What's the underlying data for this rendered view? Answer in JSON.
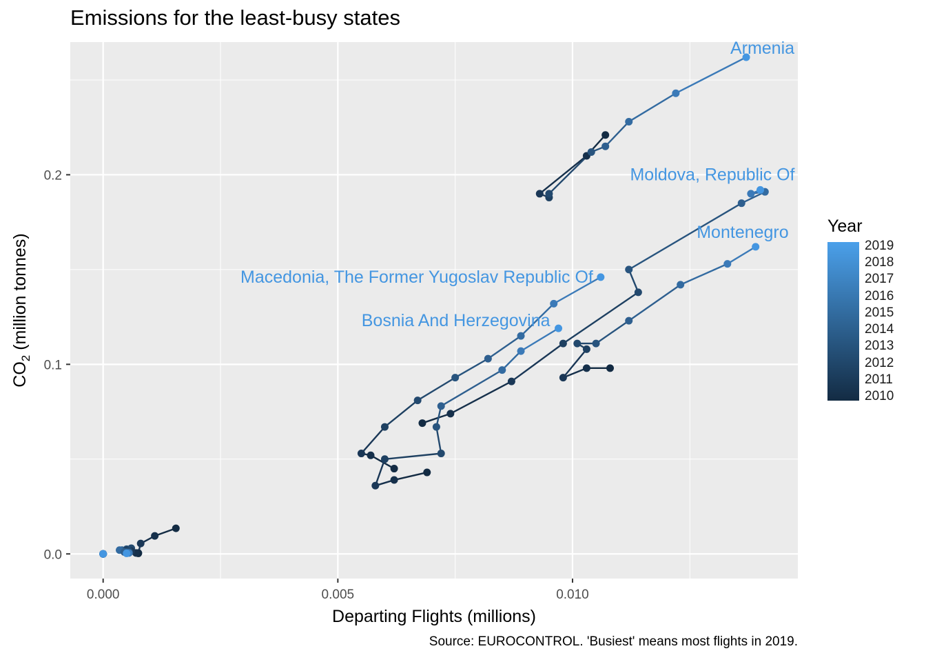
{
  "chart_data": {
    "type": "scatter",
    "title": "Emissions for the least-busy states",
    "xlabel": "Departing Flights (millions)",
    "ylabel": "CO2 (million tonnes)",
    "caption": "Source: EUROCONTROL. 'Busiest' means most flights in 2019.",
    "xlim": [
      -0.0007,
      0.0148
    ],
    "ylim": [
      -0.013,
      0.27
    ],
    "x_ticks": [
      "0.000",
      "0.005",
      "0.010"
    ],
    "x_tick_values": [
      0,
      0.005,
      0.01
    ],
    "y_ticks": [
      "0.0",
      "0.1",
      "0.2"
    ],
    "y_tick_values": [
      0,
      0.1,
      0.2
    ],
    "grid": true,
    "legend": {
      "title": "Year",
      "position": "right",
      "labels": [
        "2019",
        "2018",
        "2017",
        "2016",
        "2015",
        "2014",
        "2013",
        "2012",
        "2011",
        "2010"
      ],
      "color_low": "#132b43",
      "color_high": "#4ba0ea"
    },
    "colors": {
      "2010": "#132b43",
      "2011": "#16304b",
      "2012": "#1a3756",
      "2013": "#1e4061",
      "2014": "#23496e",
      "2015": "#28547e",
      "2016": "#2e5f8f",
      "2017": "#336ba1",
      "2018": "#3b7ab8",
      "2019": "#4496e1"
    },
    "series": [
      {
        "name": "Armenia",
        "years": [
          2010,
          2011,
          2012,
          2013,
          2014,
          2015,
          2016,
          2017,
          2018,
          2019
        ],
        "x": [
          0.0107,
          0.0103,
          0.0093,
          0.0095,
          0.0095,
          0.0104,
          0.0107,
          0.0112,
          0.0122,
          0.0137
        ],
        "y": [
          0.221,
          0.21,
          0.19,
          0.188,
          0.19,
          0.212,
          0.215,
          0.228,
          0.243,
          0.262
        ]
      },
      {
        "name": "Moldova, Republic Of",
        "years": [
          2010,
          2011,
          2012,
          2013,
          2014,
          2015,
          2016,
          2017,
          2018,
          2019
        ],
        "x": [
          0.0068,
          0.0074,
          0.0087,
          0.0098,
          0.0114,
          0.0112,
          0.0136,
          0.0141,
          0.0138,
          0.014
        ],
        "y": [
          0.069,
          0.074,
          0.091,
          0.111,
          0.138,
          0.15,
          0.185,
          0.191,
          0.19,
          0.192
        ]
      },
      {
        "name": "Montenegro",
        "years": [
          2010,
          2011,
          2012,
          2013,
          2014,
          2015,
          2016,
          2017,
          2018,
          2019
        ],
        "x": [
          0.0108,
          0.0103,
          0.0098,
          0.0103,
          0.0101,
          0.0105,
          0.0112,
          0.0123,
          0.0133,
          0.0139
        ],
        "y": [
          0.098,
          0.098,
          0.093,
          0.108,
          0.111,
          0.111,
          0.123,
          0.142,
          0.153,
          0.162
        ]
      },
      {
        "name": "Macedonia, The Former Yugoslav Republic Of",
        "years": [
          2010,
          2011,
          2012,
          2013,
          2014,
          2015,
          2016,
          2017,
          2018,
          2019
        ],
        "x": [
          0.0062,
          0.0057,
          0.0055,
          0.006,
          0.0067,
          0.0075,
          0.0082,
          0.0089,
          0.0096,
          0.0106
        ],
        "y": [
          0.045,
          0.052,
          0.053,
          0.067,
          0.081,
          0.093,
          0.103,
          0.115,
          0.132,
          0.146
        ]
      },
      {
        "name": "Bosnia And Herzegovina",
        "years": [
          2010,
          2011,
          2012,
          2013,
          2014,
          2015,
          2016,
          2017,
          2018,
          2019
        ],
        "x": [
          0.0069,
          0.0062,
          0.0058,
          0.006,
          0.0072,
          0.0071,
          0.0072,
          0.0085,
          0.0089,
          0.0097
        ],
        "y": [
          0.043,
          0.039,
          0.036,
          0.05,
          0.053,
          0.067,
          0.078,
          0.097,
          0.107,
          0.119
        ]
      },
      {
        "name": "",
        "years": [
          2010,
          2011,
          2012,
          2013,
          2014,
          2015,
          2016,
          2017,
          2018,
          2019
        ],
        "x": [
          0.00155,
          0.0011,
          0.0008,
          0.00075,
          0.0006,
          0.0005,
          0.0004,
          0.00035,
          0.0005,
          0.0005
        ],
        "y": [
          0.0135,
          0.0095,
          0.0055,
          0.0005,
          0.003,
          0.0025,
          0.002,
          0.002,
          0.001,
          0.0005
        ]
      },
      {
        "name": "",
        "years": [
          2010,
          2011,
          2012,
          2013,
          2014,
          2015,
          2016,
          2017,
          2018,
          2019
        ],
        "x": [
          0.00075,
          0.0007,
          0.0006,
          0.0005,
          0.00055,
          0.0005,
          0.00045,
          0.0005,
          0.00055,
          0.0005
        ],
        "y": [
          0.0003,
          0.0005,
          0.0015,
          0.002,
          0.0015,
          0.001,
          0.001,
          0.0005,
          0.0005,
          0.0003
        ]
      },
      {
        "name": "",
        "years": [
          2010,
          2011,
          2012,
          2013,
          2014,
          2015,
          2016,
          2017,
          2018,
          2019
        ],
        "x": [
          0,
          0,
          0,
          0,
          0,
          0,
          0,
          0,
          0,
          0
        ],
        "y": [
          0,
          0,
          0,
          0,
          0,
          0,
          0,
          0,
          0,
          0
        ]
      }
    ]
  }
}
